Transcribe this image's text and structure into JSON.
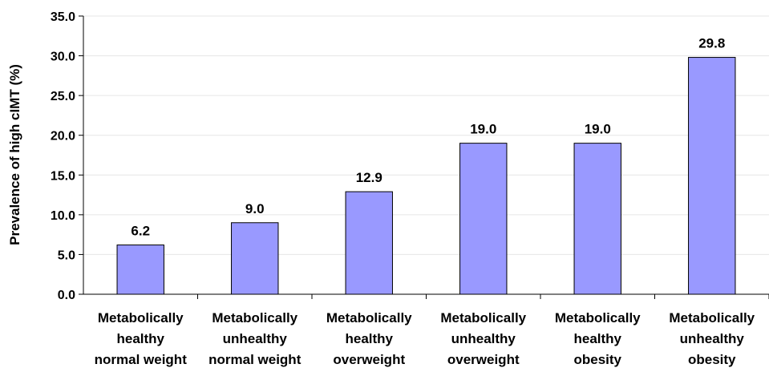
{
  "chart_data": {
    "type": "bar",
    "title": "",
    "xlabel": "",
    "ylabel": "Prevalence of high cIMT (%)",
    "ylim": [
      0,
      35
    ],
    "y_ticks": [
      "0.0",
      "5.0",
      "10.0",
      "15.0",
      "20.0",
      "25.0",
      "30.0",
      "35.0"
    ],
    "grid": true,
    "legend": "none",
    "bar_color": "#9999ff",
    "categories": [
      [
        "Metabolically",
        "healthy",
        "normal weight"
      ],
      [
        "Metabolically",
        "unhealthy",
        "normal weight"
      ],
      [
        "Metabolically",
        "healthy",
        "overweight"
      ],
      [
        "Metabolically",
        "unhealthy",
        "overweight"
      ],
      [
        "Metabolically",
        "healthy",
        "obesity"
      ],
      [
        "Metabolically",
        "unhealthy",
        "obesity"
      ]
    ],
    "values": [
      6.2,
      9.0,
      12.9,
      19.0,
      19.0,
      29.8
    ],
    "data_labels": [
      "6.2",
      "9.0",
      "12.9",
      "19.0",
      "19.0",
      "29.8"
    ]
  }
}
